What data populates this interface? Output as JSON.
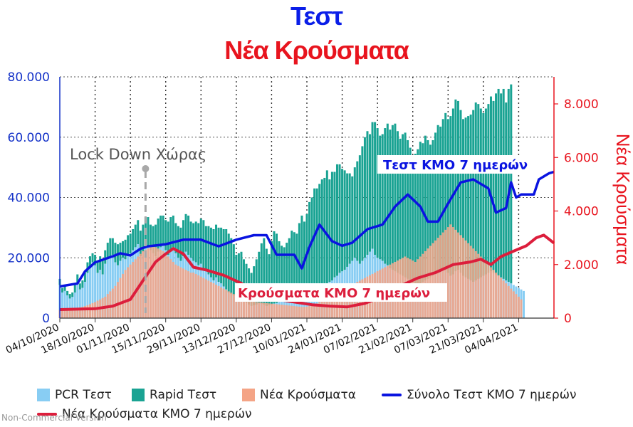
{
  "title": "Τεστ",
  "subtitle": "Νέα Κρούσματα",
  "credit": "Non-Commercial Version",
  "colors": {
    "title": "#0a1ee8",
    "subtitle": "#e8141e",
    "pcr": "#88cdf3",
    "rapid": "#1aa393",
    "cases": "#f4a486",
    "tests_ma": "#0a14e0",
    "cases_ma": "#dc1e3c",
    "left_axis": "#1432c8",
    "right_axis": "#e8141e",
    "annotation": "#555555"
  },
  "chart_data": {
    "type": "bar",
    "x_start": "2020-10-04",
    "x_end": "2021-04-18",
    "xticks": [
      "04/10/2020",
      "18/10/2020",
      "01/11/2020",
      "15/11/2020",
      "29/11/2020",
      "13/12/2020",
      "27/12/2020",
      "10/01/2021",
      "24/01/2021",
      "07/02/2021",
      "21/02/2021",
      "07/03/2021",
      "21/03/2021",
      "04/04/2021"
    ],
    "y_left": {
      "label": "",
      "min": 0,
      "max": 80000,
      "ticks": [
        "0",
        "20.000",
        "40.000",
        "60.000",
        "80.000"
      ]
    },
    "y_right": {
      "label": "Νέα Κρούσματα",
      "min": 0,
      "max": 8000,
      "ticks": [
        "0",
        "2.000",
        "4.000",
        "6.000",
        "8.000"
      ]
    },
    "grid": "vertical dotted every 14 days, horizontal dotted at left ticks",
    "legend_position": "bottom",
    "legend": [
      {
        "name": "PCR Τεστ",
        "kind": "bar",
        "color_key": "pcr"
      },
      {
        "name": "Rapid Τεστ",
        "kind": "bar",
        "color_key": "rapid"
      },
      {
        "name": "Νέα Κρούσματα",
        "kind": "bar",
        "color_key": "cases"
      },
      {
        "name": "Σύνολο Τεστ ΚΜΟ 7 ημερών",
        "kind": "line",
        "color_key": "tests_ma"
      },
      {
        "name": "Νέα Κρούσματα ΚΜΟ 7 ημερών",
        "kind": "line",
        "color_key": "cases_ma"
      }
    ],
    "annotations": {
      "lockdown_label": "Lock Down Χώρας",
      "lockdown_date": "2020-11-07",
      "tests_ma_label": "Τεστ ΚΜΟ 7 ημερών",
      "cases_ma_label": "Κρούσματα ΚΜΟ 7 ημερών"
    },
    "series": [
      {
        "name": "Σύνολο Τεστ ΚΜΟ 7 ημερών",
        "axis": "left",
        "points": [
          [
            "2020-10-04",
            10500
          ],
          [
            "2020-10-11",
            11500
          ],
          [
            "2020-10-14",
            15500
          ],
          [
            "2020-10-18",
            18500
          ],
          [
            "2020-10-25",
            20500
          ],
          [
            "2020-10-28",
            21500
          ],
          [
            "2020-11-01",
            20800
          ],
          [
            "2020-11-05",
            23000
          ],
          [
            "2020-11-08",
            23800
          ],
          [
            "2020-11-15",
            24500
          ],
          [
            "2020-11-22",
            26000
          ],
          [
            "2020-11-29",
            26000
          ],
          [
            "2020-12-06",
            23800
          ],
          [
            "2020-12-13",
            26000
          ],
          [
            "2020-12-20",
            27500
          ],
          [
            "2020-12-25",
            27500
          ],
          [
            "2020-12-29",
            21000
          ],
          [
            "2021-01-05",
            21000
          ],
          [
            "2021-01-08",
            16500
          ],
          [
            "2021-01-11",
            23500
          ],
          [
            "2021-01-15",
            31000
          ],
          [
            "2021-01-20",
            25500
          ],
          [
            "2021-01-24",
            24000
          ],
          [
            "2021-01-28",
            25000
          ],
          [
            "2021-02-03",
            29500
          ],
          [
            "2021-02-09",
            31000
          ],
          [
            "2021-02-14",
            37000
          ],
          [
            "2021-02-19",
            41000
          ],
          [
            "2021-02-24",
            37000
          ],
          [
            "2021-02-27",
            32000
          ],
          [
            "2021-03-03",
            32000
          ],
          [
            "2021-03-07",
            38000
          ],
          [
            "2021-03-12",
            45000
          ],
          [
            "2021-03-17",
            46000
          ],
          [
            "2021-03-23",
            43000
          ],
          [
            "2021-03-26",
            35000
          ],
          [
            "2021-03-30",
            36500
          ],
          [
            "2021-04-01",
            45000
          ],
          [
            "2021-04-03",
            40000
          ],
          [
            "2021-04-05",
            41000
          ],
          [
            "2021-04-10",
            41000
          ],
          [
            "2021-04-12",
            46000
          ],
          [
            "2021-04-16",
            48000
          ],
          [
            "2021-04-18",
            48500
          ]
        ]
      },
      {
        "name": "Νέα Κρούσματα ΚΜΟ 7 ημερών",
        "axis": "right",
        "points": [
          [
            "2020-10-04",
            320
          ],
          [
            "2020-10-18",
            350
          ],
          [
            "2020-10-25",
            450
          ],
          [
            "2020-11-01",
            700
          ],
          [
            "2020-11-06",
            1400
          ],
          [
            "2020-11-11",
            2100
          ],
          [
            "2020-11-15",
            2400
          ],
          [
            "2020-11-18",
            2600
          ],
          [
            "2020-11-22",
            2400
          ],
          [
            "2020-11-26",
            1900
          ],
          [
            "2020-12-01",
            1800
          ],
          [
            "2020-12-08",
            1600
          ],
          [
            "2020-12-15",
            1300
          ],
          [
            "2020-12-22",
            900
          ],
          [
            "2020-12-29",
            700
          ],
          [
            "2021-01-05",
            600
          ],
          [
            "2021-01-12",
            500
          ],
          [
            "2021-01-19",
            450
          ],
          [
            "2021-01-26",
            420
          ],
          [
            "2021-02-02",
            550
          ],
          [
            "2021-02-09",
            800
          ],
          [
            "2021-02-16",
            1200
          ],
          [
            "2021-02-23",
            1500
          ],
          [
            "2021-03-02",
            1700
          ],
          [
            "2021-03-09",
            2000
          ],
          [
            "2021-03-16",
            2100
          ],
          [
            "2021-03-20",
            2200
          ],
          [
            "2021-03-24",
            2000
          ],
          [
            "2021-03-28",
            2300
          ],
          [
            "2021-04-02",
            2500
          ],
          [
            "2021-04-07",
            2700
          ],
          [
            "2021-04-11",
            3000
          ],
          [
            "2021-04-14",
            3100
          ],
          [
            "2021-04-18",
            2800
          ]
        ]
      }
    ],
    "daily_bars": {
      "note": "Daily PCR, Rapid and new case values, estimated from the chart",
      "start": "2020-10-04",
      "pcr": [
        11000,
        8500,
        9000,
        7500,
        6500,
        7000,
        8500,
        11500,
        9500,
        10000,
        12000,
        15000,
        16500,
        18500,
        17500,
        15000,
        16000,
        14500,
        18000,
        19500,
        20500,
        21000,
        18500,
        17500,
        19000,
        20000,
        19500,
        20500,
        21500,
        22500,
        23500,
        24500,
        20500,
        22000,
        23500,
        24000,
        22500,
        21500,
        20500,
        22000,
        23500,
        24500,
        22500,
        21000,
        22000,
        23500,
        21500,
        20000,
        19000,
        20500,
        22000,
        21000,
        20000,
        19000,
        18500,
        17500,
        18000,
        16500,
        15500,
        14500,
        13500,
        12500,
        13500,
        12000,
        11500,
        10500,
        9500,
        8500,
        8000,
        7500,
        7000,
        6500,
        6000,
        5500,
        5000,
        4500,
        4000,
        4200,
        4500,
        5000,
        4800,
        4500,
        4000,
        4200,
        4500,
        4800,
        5000,
        5500,
        6000,
        6500,
        6000,
        5500,
        6000,
        6500,
        7000,
        7500,
        8000,
        7000,
        7500,
        8500,
        8000,
        9000,
        10000,
        9500,
        9000,
        10500,
        11000,
        12000,
        12500,
        13500,
        14000,
        15000,
        15500,
        16000,
        17000,
        18000,
        19000,
        20000,
        19000,
        18000,
        19000,
        20000,
        21000,
        22000,
        23000,
        21000,
        20000,
        19500,
        19000,
        18000,
        17500,
        16500,
        16000,
        15500,
        15000,
        14500,
        14000,
        13500,
        13000,
        12500,
        12000,
        11500,
        11000,
        11500,
        12000,
        12500,
        13000,
        13500,
        14000,
        14500,
        15000,
        15500,
        16000,
        16000,
        15000,
        14000,
        14500,
        15500,
        16000,
        15000,
        14000,
        13500,
        13000,
        12500,
        12000,
        12500,
        13000,
        13500,
        14000,
        14500,
        15000,
        15500,
        15000,
        14500,
        14000,
        13500,
        13000,
        12500,
        12000,
        11500,
        11000,
        10500,
        10000,
        9500,
        9000
      ],
      "rapid": [
        2000,
        1500,
        2000,
        1500,
        1500,
        1500,
        2500,
        3000,
        2000,
        2500,
        3000,
        3500,
        4000,
        3000,
        3500,
        4000,
        4500,
        5000,
        4500,
        5500,
        6000,
        5500,
        6500,
        7000,
        6000,
        5500,
        6500,
        7000,
        6500,
        7000,
        7500,
        8000,
        8500,
        9000,
        10000,
        9500,
        8500,
        9000,
        10500,
        11000,
        10500,
        9500,
        10000,
        11000,
        11500,
        10500,
        10000,
        10500,
        11000,
        12000,
        12500,
        13000,
        12000,
        12500,
        13500,
        14000,
        15000,
        16000,
        15000,
        16000,
        16500,
        17000,
        17500,
        18000,
        18500,
        19000,
        20000,
        19500,
        18500,
        17000,
        14000,
        15000,
        16000,
        14000,
        13000,
        12000,
        11000,
        13000,
        15000,
        17000,
        20000,
        22000,
        19000,
        17000,
        21000,
        24000,
        23000,
        20000,
        18000,
        17000,
        19000,
        21000,
        23000,
        22000,
        21000,
        24000,
        26000,
        25000,
        27000,
        30000,
        32000,
        34000,
        33000,
        35000,
        37000,
        36000,
        38000,
        34000,
        36000,
        35000,
        37000,
        36000,
        34000,
        33000,
        31000,
        30000,
        28000,
        30000,
        33000,
        36000,
        38000,
        40000,
        41000,
        39000,
        42000,
        44000,
        43000,
        41000,
        42000,
        45000,
        47000,
        46000,
        48000,
        49000,
        47000,
        45000,
        47000,
        48000,
        46000,
        44000,
        42000,
        43000,
        45000,
        47000,
        46000,
        48000,
        46000,
        44000,
        45000,
        47000,
        49000,
        48000,
        50000,
        52000,
        51000,
        53000,
        55000,
        57000,
        56000,
        54000,
        52000,
        53000,
        54000,
        55000,
        57000,
        59000,
        58000,
        56000,
        54000,
        55000,
        56000,
        58000,
        57000,
        60000,
        62000,
        61000,
        63000,
        59000,
        64000,
        66000
      ],
      "cases": [
        300,
        280,
        320,
        350,
        300,
        330,
        360,
        380,
        400,
        420,
        450,
        480,
        520,
        560,
        600,
        650,
        700,
        750,
        800,
        900,
        1000,
        1100,
        1200,
        1350,
        1500,
        1650,
        1800,
        1900,
        2000,
        2100,
        2200,
        2300,
        2400,
        2500,
        2550,
        2600,
        2650,
        2700,
        2650,
        2600,
        2550,
        2500,
        2400,
        2300,
        2200,
        2100,
        2000,
        1950,
        1900,
        1850,
        1800,
        1750,
        1700,
        1700,
        1650,
        1600,
        1550,
        1500,
        1450,
        1400,
        1350,
        1300,
        1250,
        1200,
        1150,
        1100,
        1050,
        1000,
        950,
        900,
        850,
        800,
        750,
        700,
        680,
        660,
        640,
        620,
        600,
        590,
        580,
        570,
        560,
        550,
        540,
        530,
        520,
        510,
        500,
        490,
        480,
        470,
        460,
        450,
        440,
        430,
        420,
        420,
        430,
        450,
        480,
        510,
        550,
        600,
        650,
        700,
        750,
        800,
        850,
        900,
        950,
        1000,
        1050,
        1100,
        1150,
        1200,
        1250,
        1300,
        1350,
        1400,
        1450,
        1500,
        1550,
        1600,
        1650,
        1700,
        1750,
        1800,
        1850,
        1900,
        1950,
        2000,
        2050,
        2100,
        2150,
        2200,
        2250,
        2300,
        2250,
        2200,
        2150,
        2100,
        2200,
        2300,
        2400,
        2500,
        2600,
        2700,
        2800,
        2900,
        3000,
        3100,
        3200,
        3300,
        3400,
        3500,
        3400,
        3300,
        3200,
        3100,
        3000,
        2900,
        2800,
        2700,
        2600,
        2500,
        2400,
        2300,
        2200,
        2100,
        2000,
        1900,
        1800,
        1700,
        1600,
        1500,
        1400,
        1300,
        1200,
        1100,
        1000,
        900,
        800,
        700
      ]
    }
  }
}
